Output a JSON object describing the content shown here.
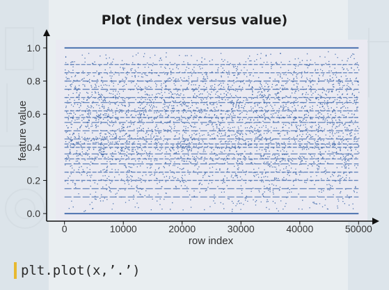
{
  "slide": {
    "title": "Plot (index versus value)",
    "code": "plt.plot(x,’.’)",
    "accent_color": "#e8b931",
    "background_color": "#e9eef1"
  },
  "chart_data": {
    "type": "scatter",
    "title": "",
    "xlabel": "row index",
    "ylabel": "feature value",
    "xlim": [
      -1500,
      51500
    ],
    "ylim": [
      -0.05,
      1.05
    ],
    "xticks": [
      0,
      10000,
      20000,
      30000,
      40000,
      50000
    ],
    "yticks": [
      0.0,
      0.2,
      0.4,
      0.6,
      0.8,
      1.0
    ],
    "point_color": "#4c72b0",
    "plot_background": "#eaeaf2",
    "grid": false,
    "legend": "none",
    "n_points": 50000,
    "dense_rows_y": [
      0.0,
      1.0,
      0.5,
      0.58,
      0.67,
      0.42,
      0.45,
      0.33,
      0.3,
      0.25,
      0.75,
      0.85,
      0.8,
      0.2,
      0.15,
      0.7,
      0.55,
      0.62,
      0.36,
      0.4,
      0.1,
      0.9
    ],
    "scatter_density_by_y": [
      [
        0.02,
        0.5
      ],
      [
        0.1,
        1.0
      ],
      [
        0.2,
        1.6
      ],
      [
        0.3,
        2.6
      ],
      [
        0.4,
        3.6
      ],
      [
        0.45,
        4.0
      ],
      [
        0.5,
        3.2
      ],
      [
        0.6,
        4.2
      ],
      [
        0.7,
        3.6
      ],
      [
        0.8,
        2.6
      ],
      [
        0.9,
        1.6
      ],
      [
        0.97,
        0.6
      ]
    ]
  }
}
